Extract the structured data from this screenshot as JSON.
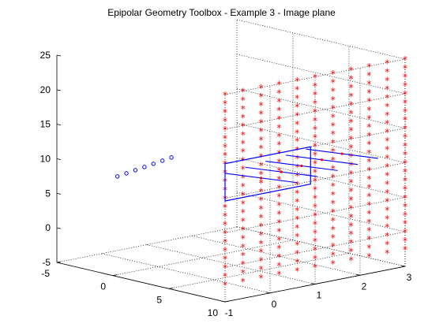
{
  "chart_data": {
    "type": "scatter",
    "title": "Epipolar Geometry Toolbox - Example 3 - Image plane",
    "xlabel": "",
    "ylabel": "",
    "zlabel": "",
    "xlim": [
      -5,
      10
    ],
    "ylim": [
      -1,
      3
    ],
    "zlim": [
      -5,
      25
    ],
    "xticks": [
      "-5",
      "0",
      "5",
      "10"
    ],
    "yticks": [
      "-1",
      "0",
      "1",
      "2",
      "3"
    ],
    "zticks": [
      "-5",
      "0",
      "5",
      "10",
      "15",
      "20",
      "25"
    ],
    "grid": true,
    "series": [
      {
        "marker": "*",
        "color": "#ff0000",
        "plane_x": 10,
        "y_values": [
          -1,
          -0.6,
          -0.2,
          0.2,
          0.6,
          1.0,
          1.4,
          1.8,
          2.2,
          2.6,
          3.0
        ],
        "z_values": [
          -2.5,
          -1.25,
          0,
          1.25,
          2.5,
          3.75,
          5,
          6.25,
          7.5,
          8.75,
          10,
          11.25,
          12.5,
          13.75,
          15,
          16.25,
          17.5,
          18.75,
          20,
          21.25,
          22.5,
          23.75,
          25
        ]
      },
      {
        "marker": "line",
        "color": "#0000ff",
        "x_values": [
          10,
          10,
          10,
          10,
          10
        ],
        "y_values": [
          -1,
          -0.55,
          -0.1,
          0.35,
          0.8
        ],
        "z_start": [
          13.6,
          13.9,
          14.2,
          14.5,
          14.8
        ],
        "z_end": [
          10.2,
          10.5,
          10.8,
          11.1,
          11.4
        ]
      },
      {
        "marker": "o",
        "color": "#0000ff",
        "x_values": [
          0.4,
          0.4,
          0.4,
          0.4,
          0.4,
          0.4,
          0.4
        ],
        "y_values": [
          -1.0,
          -0.8,
          -0.6,
          -0.4,
          -0.2,
          0.0,
          0.2
        ],
        "z_values": [
          9.5,
          9.7,
          9.9,
          10.1,
          10.3,
          10.5,
          10.7
        ]
      }
    ],
    "image_plane": {
      "color": "#0000ff",
      "x": 10,
      "y_range": [
        -1,
        0.9
      ],
      "z_range": [
        9.6,
        15
      ]
    }
  }
}
